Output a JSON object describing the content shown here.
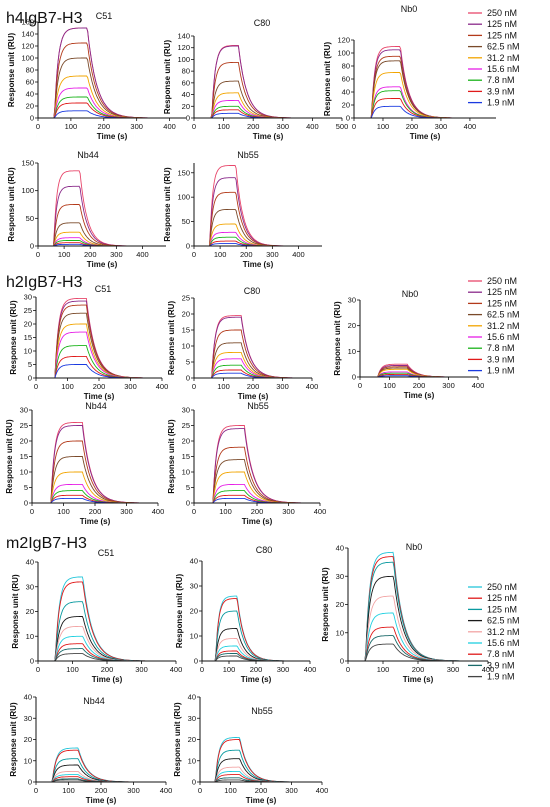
{
  "sections": [
    {
      "title": "h4IgB7-H3",
      "legend": {
        "labels": [
          "250 nM",
          "125 nM",
          "125 nM",
          "62.5 nM",
          "31.2 nM",
          "15.6 nM",
          "7.8 nM",
          "3.9 nM",
          "1.9 nM"
        ],
        "colors": [
          "#e8476b",
          "#8a2a8a",
          "#b33a1a",
          "#7a4a2a",
          "#f2a500",
          "#e61ee6",
          "#1ab31a",
          "#e01a1a",
          "#1a3ae0"
        ]
      }
    },
    {
      "title": "h2IgB7-H3",
      "legend": {
        "labels": [
          "250 nM",
          "125 nM",
          "125 nM",
          "62.5 nM",
          "31.2 nM",
          "15.6 nM",
          "7.8 nM",
          "3.9 nM",
          "1.9 nM"
        ],
        "colors": [
          "#e8476b",
          "#8a2a8a",
          "#b33a1a",
          "#7a4a2a",
          "#f2a500",
          "#e61ee6",
          "#1ab31a",
          "#e01a1a",
          "#1a3ae0"
        ]
      }
    },
    {
      "title": "m2IgB7-H3",
      "legend": {
        "labels": [
          "250 nM",
          "125 nM",
          "125 nM",
          "62.5 nM",
          "31.2 nM",
          "15.6 nM",
          "7.8 nM",
          "3.9 nM",
          "1.9 nM"
        ],
        "colors": [
          "#26c6da",
          "#e01a1a",
          "#0a9aa0",
          "#1a1a1a",
          "#f2a5a5",
          "#20d0e0",
          "#e01a1a",
          "#1a6a6a",
          "#444444"
        ]
      }
    }
  ],
  "chart_data": [
    {
      "type": "line",
      "section": 0,
      "title": "C51",
      "xlabel": "Time (s)",
      "ylabel": "Response unit (RU)",
      "xlim": [
        0,
        450
      ],
      "ylim": [
        0,
        160
      ],
      "xticks": [
        0,
        100,
        200,
        300,
        400
      ],
      "yticks": [
        0,
        20,
        40,
        60,
        80,
        100,
        120,
        140,
        160
      ],
      "assoc": [
        50,
        150
      ],
      "plateaus": [
        150,
        150,
        125,
        100,
        70,
        50,
        35,
        25,
        12
      ],
      "xlabel_shown": true
    },
    {
      "type": "line",
      "section": 0,
      "title": "C80",
      "xlabel": "Time (s)",
      "ylabel": "Response unit (RU)",
      "xlim": [
        0,
        500
      ],
      "ylim": [
        0,
        140
      ],
      "xticks": [
        0,
        100,
        200,
        300,
        400,
        500
      ],
      "yticks": [
        0,
        20,
        40,
        60,
        80,
        100,
        120,
        140
      ],
      "assoc": [
        60,
        150
      ],
      "plateaus": [
        124,
        123,
        95,
        63,
        43,
        30,
        20,
        14,
        8
      ],
      "xlabel_shown": true
    },
    {
      "type": "line",
      "section": 0,
      "title": "Nb0",
      "xlabel": "Time (s)",
      "ylabel": "Response unit (RU)",
      "xlim": [
        0,
        490
      ],
      "ylim": [
        0,
        120
      ],
      "xticks": [
        0,
        100,
        200,
        300,
        400
      ],
      "yticks": [
        0,
        20,
        40,
        60,
        80,
        100,
        120
      ],
      "assoc": [
        60,
        160
      ],
      "plateaus": [
        110,
        105,
        95,
        88,
        70,
        48,
        42,
        30,
        18
      ],
      "xlabel_shown": true
    },
    {
      "type": "line",
      "section": 0,
      "title": "Nb44",
      "xlabel": "Time (s)",
      "ylabel": "Response unit (RU)",
      "xlim": [
        0,
        490
      ],
      "ylim": [
        0,
        150
      ],
      "xticks": [
        0,
        100,
        200,
        300,
        400
      ],
      "yticks": [
        0,
        50,
        100,
        150
      ],
      "assoc": [
        60,
        160
      ],
      "plateaus": [
        136,
        108,
        75,
        42,
        25,
        15,
        10,
        6,
        3
      ],
      "xlabel_shown": true
    },
    {
      "type": "line",
      "section": 0,
      "title": "Nb55",
      "xlabel": "Time (s)",
      "ylabel": "Response unit (RU)",
      "xlim": [
        0,
        490
      ],
      "ylim": [
        0,
        170
      ],
      "xticks": [
        0,
        100,
        200,
        300,
        400
      ],
      "yticks": [
        0,
        50,
        100,
        150
      ],
      "assoc": [
        60,
        160
      ],
      "plateaus": [
        165,
        140,
        110,
        75,
        45,
        28,
        18,
        10,
        5
      ],
      "xlabel_shown": true
    },
    {
      "type": "line",
      "section": 1,
      "title": "C51",
      "xlabel": "Time (s)",
      "ylabel": "Response unit (RU)",
      "xlim": [
        0,
        400
      ],
      "ylim": [
        0,
        30
      ],
      "xticks": [
        0,
        100,
        200,
        300,
        400
      ],
      "yticks": [
        0,
        5,
        10,
        15,
        20,
        25,
        30
      ],
      "assoc": [
        60,
        160
      ],
      "plateaus": [
        29.5,
        28.5,
        27,
        24,
        20,
        17,
        12,
        8,
        5
      ],
      "xlabel_shown": true
    },
    {
      "type": "line",
      "section": 1,
      "title": "C80",
      "xlabel": "Time (s)",
      "ylabel": "Response unit (RU)",
      "xlim": [
        0,
        400
      ],
      "ylim": [
        0,
        25
      ],
      "xticks": [
        0,
        100,
        200,
        300,
        400
      ],
      "yticks": [
        0,
        5,
        10,
        15,
        20,
        25
      ],
      "assoc": [
        60,
        160
      ],
      "plateaus": [
        19.5,
        19,
        15,
        11,
        8,
        6,
        4,
        2.5,
        1.5
      ],
      "xlabel_shown": true
    },
    {
      "type": "line",
      "section": 1,
      "title": "Nb0",
      "xlabel": "Time (s)",
      "ylabel": "Response unit (RU)",
      "xlim": [
        0,
        400
      ],
      "ylim": [
        0,
        30
      ],
      "xticks": [
        0,
        100,
        200,
        300,
        400
      ],
      "yticks": [
        0,
        10,
        20,
        30
      ],
      "assoc": [
        60,
        160
      ],
      "plateaus": [
        5,
        4.5,
        4,
        3.5,
        3,
        2,
        1.5,
        1,
        0.5
      ],
      "xlabel_shown": true
    },
    {
      "type": "line",
      "section": 1,
      "title": "Nb44",
      "xlabel": "Time (s)",
      "ylabel": "Response unit (RU)",
      "xlim": [
        0,
        400
      ],
      "ylim": [
        0,
        30
      ],
      "xticks": [
        0,
        100,
        200,
        300,
        400
      ],
      "yticks": [
        0,
        5,
        10,
        15,
        20,
        25,
        30
      ],
      "assoc": [
        60,
        160
      ],
      "plateaus": [
        26,
        25,
        20,
        15,
        10,
        6,
        4,
        2.5,
        1.5
      ],
      "xlabel_shown": true
    },
    {
      "type": "line",
      "section": 1,
      "title": "Nb55",
      "xlabel": "Time (s)",
      "ylabel": "Response unit (RU)",
      "xlim": [
        0,
        400
      ],
      "ylim": [
        0,
        30
      ],
      "xticks": [
        0,
        100,
        200,
        300,
        400
      ],
      "yticks": [
        0,
        5,
        10,
        15,
        20,
        25,
        30
      ],
      "assoc": [
        60,
        160
      ],
      "plateaus": [
        25,
        24,
        18,
        14,
        10,
        6,
        4,
        2.5,
        1.5
      ],
      "xlabel_shown": true
    },
    {
      "type": "line",
      "section": 2,
      "title": "C51",
      "xlabel": "Time (s)",
      "ylabel": "Response unit (RU)",
      "xlim": [
        0,
        400
      ],
      "ylim": [
        0,
        40
      ],
      "xticks": [
        0,
        100,
        200,
        300,
        400
      ],
      "yticks": [
        0,
        10,
        20,
        30,
        40
      ],
      "assoc": [
        50,
        130
      ],
      "plateaus": [
        34,
        32,
        24,
        18,
        14,
        10,
        7,
        5,
        3
      ],
      "xlabel_shown": true
    },
    {
      "type": "line",
      "section": 2,
      "title": "C80",
      "xlabel": "Time (s)",
      "ylabel": "Response unit (RU)",
      "xlim": [
        0,
        400
      ],
      "ylim": [
        0,
        40
      ],
      "xticks": [
        0,
        100,
        200,
        300,
        400
      ],
      "yticks": [
        0,
        10,
        20,
        30,
        40
      ],
      "assoc": [
        50,
        130
      ],
      "plateaus": [
        26,
        25,
        20,
        13,
        9,
        6,
        4,
        3,
        2
      ],
      "xlabel_shown": true
    },
    {
      "type": "line",
      "section": 2,
      "title": "Nb0",
      "xlabel": "Time (s)",
      "ylabel": "Response unit (RU)",
      "xlim": [
        0,
        400
      ],
      "ylim": [
        0,
        40
      ],
      "xticks": [
        0,
        100,
        200,
        300,
        400
      ],
      "yticks": [
        0,
        10,
        20,
        30,
        40
      ],
      "assoc": [
        50,
        130
      ],
      "plateaus": [
        38.5,
        37,
        35,
        30,
        23,
        17,
        12,
        9,
        6
      ],
      "xlabel_shown": true
    },
    {
      "type": "line",
      "section": 2,
      "title": "Nb44",
      "xlabel": "Time (s)",
      "ylabel": "Response unit (RU)",
      "xlim": [
        0,
        400
      ],
      "ylim": [
        0,
        40
      ],
      "xticks": [
        0,
        100,
        200,
        300,
        400
      ],
      "yticks": [
        0,
        10,
        20,
        30,
        40
      ],
      "assoc": [
        50,
        130
      ],
      "plateaus": [
        16,
        15,
        11,
        8,
        5,
        3.5,
        2.5,
        1.5,
        1
      ],
      "xlabel_shown": true
    },
    {
      "type": "line",
      "section": 2,
      "title": "Nb55",
      "xlabel": "Time (s)",
      "ylabel": "Response unit (RU)",
      "xlim": [
        0,
        400
      ],
      "ylim": [
        0,
        40
      ],
      "xticks": [
        0,
        100,
        200,
        300,
        400
      ],
      "yticks": [
        0,
        10,
        20,
        30,
        40
      ],
      "assoc": [
        50,
        130
      ],
      "plateaus": [
        21,
        20,
        15,
        11,
        7,
        5,
        3.5,
        2,
        1
      ],
      "xlabel_shown": true
    }
  ]
}
